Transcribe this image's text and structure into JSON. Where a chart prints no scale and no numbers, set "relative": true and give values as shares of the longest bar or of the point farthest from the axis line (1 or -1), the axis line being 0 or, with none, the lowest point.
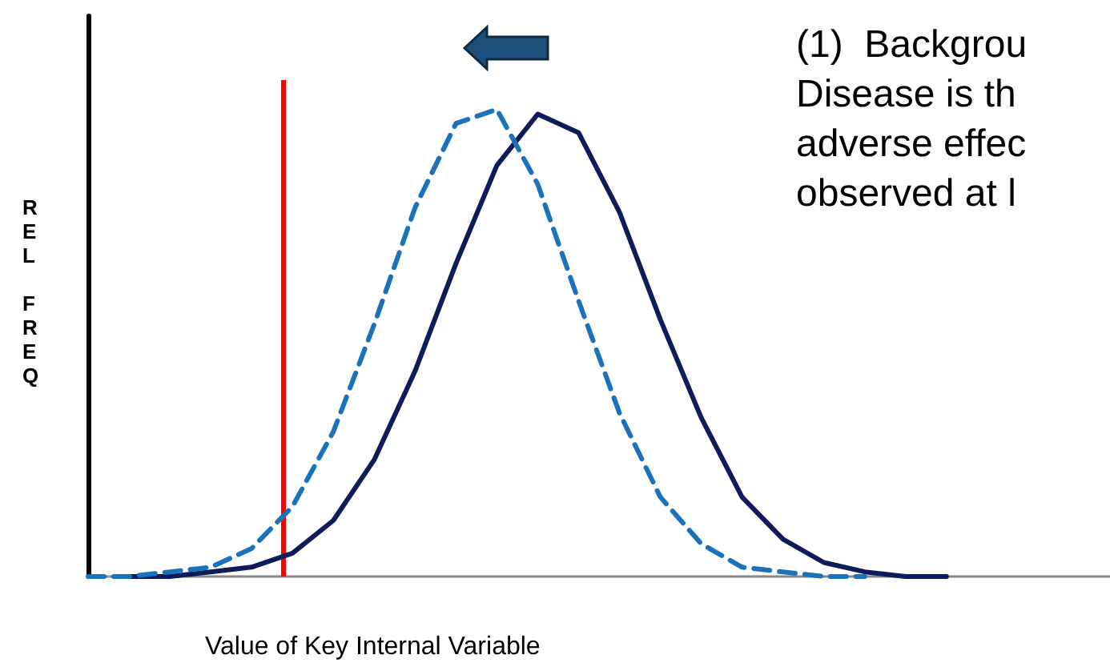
{
  "chart_data": {
    "type": "line",
    "xlabel": "Value of Key Internal Variable",
    "ylabel": "REL FREQ",
    "relative": true,
    "tick_labels": false,
    "marker": "none",
    "grid": false,
    "categories": [
      null,
      null,
      null,
      null,
      null,
      null,
      null,
      null,
      null,
      null,
      null,
      null,
      null,
      null,
      null,
      null,
      null,
      null,
      null,
      null,
      null,
      null,
      null,
      null,
      null,
      null
    ],
    "series": [
      {
        "color": "#0d1c5a",
        "line_style": "solid",
        "values": [
          null,
          0,
          0,
          0.01,
          0.02,
          0.05,
          0.12,
          0.25,
          0.44,
          0.67,
          0.88,
          0.99,
          0.95,
          0.78,
          0.55,
          0.34,
          0.17,
          0.08,
          0.03,
          0.01,
          0,
          0,
          null,
          null,
          null,
          null
        ]
      },
      {
        "color": "#1a72bb",
        "line_style": "dashed",
        "values": [
          0,
          0,
          0.01,
          0.02,
          0.06,
          0.15,
          0.31,
          0.54,
          0.79,
          0.97,
          1,
          0.84,
          0.59,
          0.35,
          0.17,
          0.07,
          0.02,
          0.01,
          0,
          0,
          null,
          null,
          null,
          null,
          null,
          null
        ]
      }
    ],
    "annotations": [
      "(1)  Backgrou",
      "Disease is th",
      "adverse effec",
      "observed at l"
    ]
  }
}
